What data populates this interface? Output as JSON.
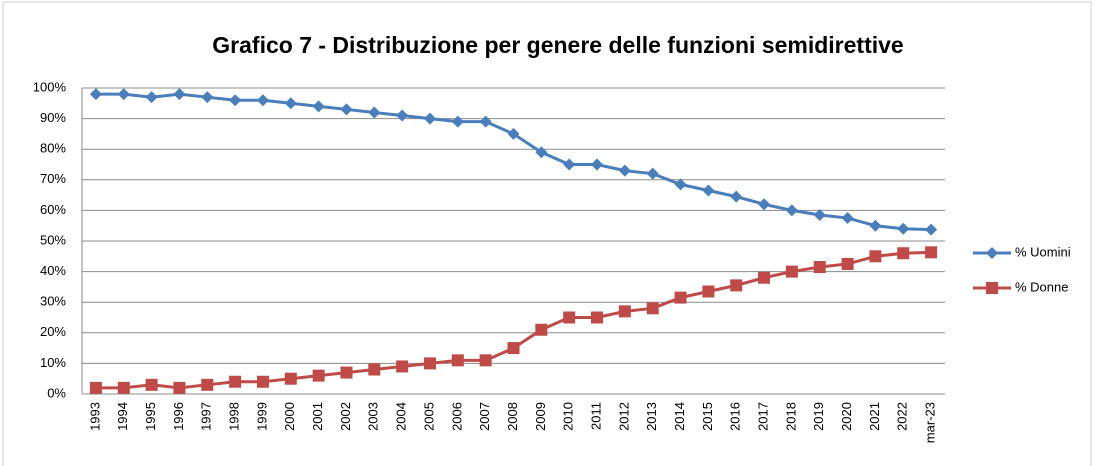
{
  "chart_data": {
    "type": "line",
    "title": "Grafico 7 - Distribuzione per genere delle funzioni semidirettive",
    "categories": [
      "1993",
      "1994",
      "1995",
      "1996",
      "1997",
      "1998",
      "1999",
      "2000",
      "2001",
      "2002",
      "2003",
      "2004",
      "2005",
      "2006",
      "2007",
      "2008",
      "2009",
      "2010",
      "2011",
      "2012",
      "2013",
      "2014",
      "2015",
      "2016",
      "2017",
      "2018",
      "2019",
      "2020",
      "2021",
      "2022",
      "mar-23"
    ],
    "series": [
      {
        "name": "% Uomini",
        "color": "#4a7ebb",
        "marker": "diamond",
        "values": [
          98,
          98,
          97,
          98,
          97,
          96,
          96,
          95,
          94,
          93,
          92,
          91,
          90,
          89,
          89,
          85,
          79,
          75,
          75,
          73,
          72,
          68.5,
          66.5,
          64.5,
          62,
          60,
          58.5,
          57.5,
          55,
          54,
          53.7
        ]
      },
      {
        "name": "% Donne",
        "color": "#be4b48",
        "marker": "square",
        "values": [
          2,
          2,
          3,
          2,
          3,
          4,
          4,
          5,
          6,
          7,
          8,
          9,
          10,
          11,
          11,
          15,
          21,
          25,
          25,
          27,
          28,
          31.5,
          33.5,
          35.5,
          38,
          40,
          41.5,
          42.5,
          45,
          46,
          46.3
        ]
      }
    ],
    "ylim": [
      0,
      100
    ],
    "yticks": [
      {
        "value": 0,
        "label": "0%"
      },
      {
        "value": 10,
        "label": "10%"
      },
      {
        "value": 20,
        "label": "20%"
      },
      {
        "value": 30,
        "label": "30%"
      },
      {
        "value": 40,
        "label": "40%"
      },
      {
        "value": 50,
        "label": "50%"
      },
      {
        "value": 60,
        "label": "60%"
      },
      {
        "value": 70,
        "label": "70%"
      },
      {
        "value": 80,
        "label": "80%"
      },
      {
        "value": 90,
        "label": "90%"
      },
      {
        "value": 100,
        "label": "100%"
      }
    ],
    "grid": true,
    "legend": "right"
  }
}
